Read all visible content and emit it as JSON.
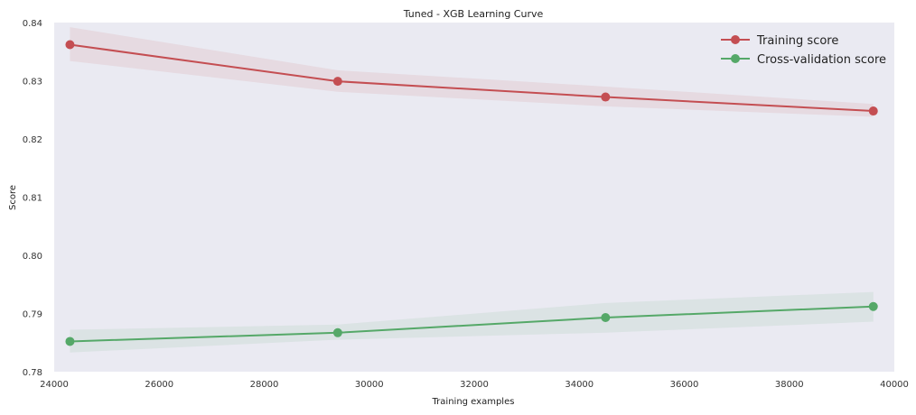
{
  "chart_data": {
    "type": "line",
    "title": "Tuned - XGB Learning Curve",
    "xlabel": "Training examples",
    "ylabel": "Score",
    "xlim": [
      24000,
      40000
    ],
    "ylim": [
      0.78,
      0.84
    ],
    "xticks": [
      24000,
      26000,
      28000,
      30000,
      32000,
      34000,
      36000,
      38000,
      40000
    ],
    "yticks": [
      0.78,
      0.79,
      0.8,
      0.81,
      0.82,
      0.83,
      0.84
    ],
    "xtick_labels": [
      "24000",
      "26000",
      "28000",
      "30000",
      "32000",
      "34000",
      "36000",
      "38000",
      "40000"
    ],
    "ytick_labels": [
      "0.78",
      "0.79",
      "0.80",
      "0.81",
      "0.82",
      "0.83",
      "0.84"
    ],
    "grid": false,
    "legend_position": "top-right",
    "x": [
      24300,
      29400,
      34500,
      39600
    ],
    "series": [
      {
        "name": "Training score",
        "color": "#c44e52",
        "values": [
          0.8362,
          0.8299,
          0.8272,
          0.8248
        ],
        "band_lower": [
          0.8334,
          0.8281,
          0.8256,
          0.8238
        ],
        "band_upper": [
          0.8392,
          0.8318,
          0.829,
          0.826
        ]
      },
      {
        "name": "Cross-validation score",
        "color": "#55a868",
        "values": [
          0.7852,
          0.7867,
          0.7893,
          0.7912
        ],
        "band_lower": [
          0.7833,
          0.7855,
          0.7867,
          0.7886
        ],
        "band_upper": [
          0.7872,
          0.7881,
          0.7918,
          0.7937
        ]
      }
    ]
  }
}
